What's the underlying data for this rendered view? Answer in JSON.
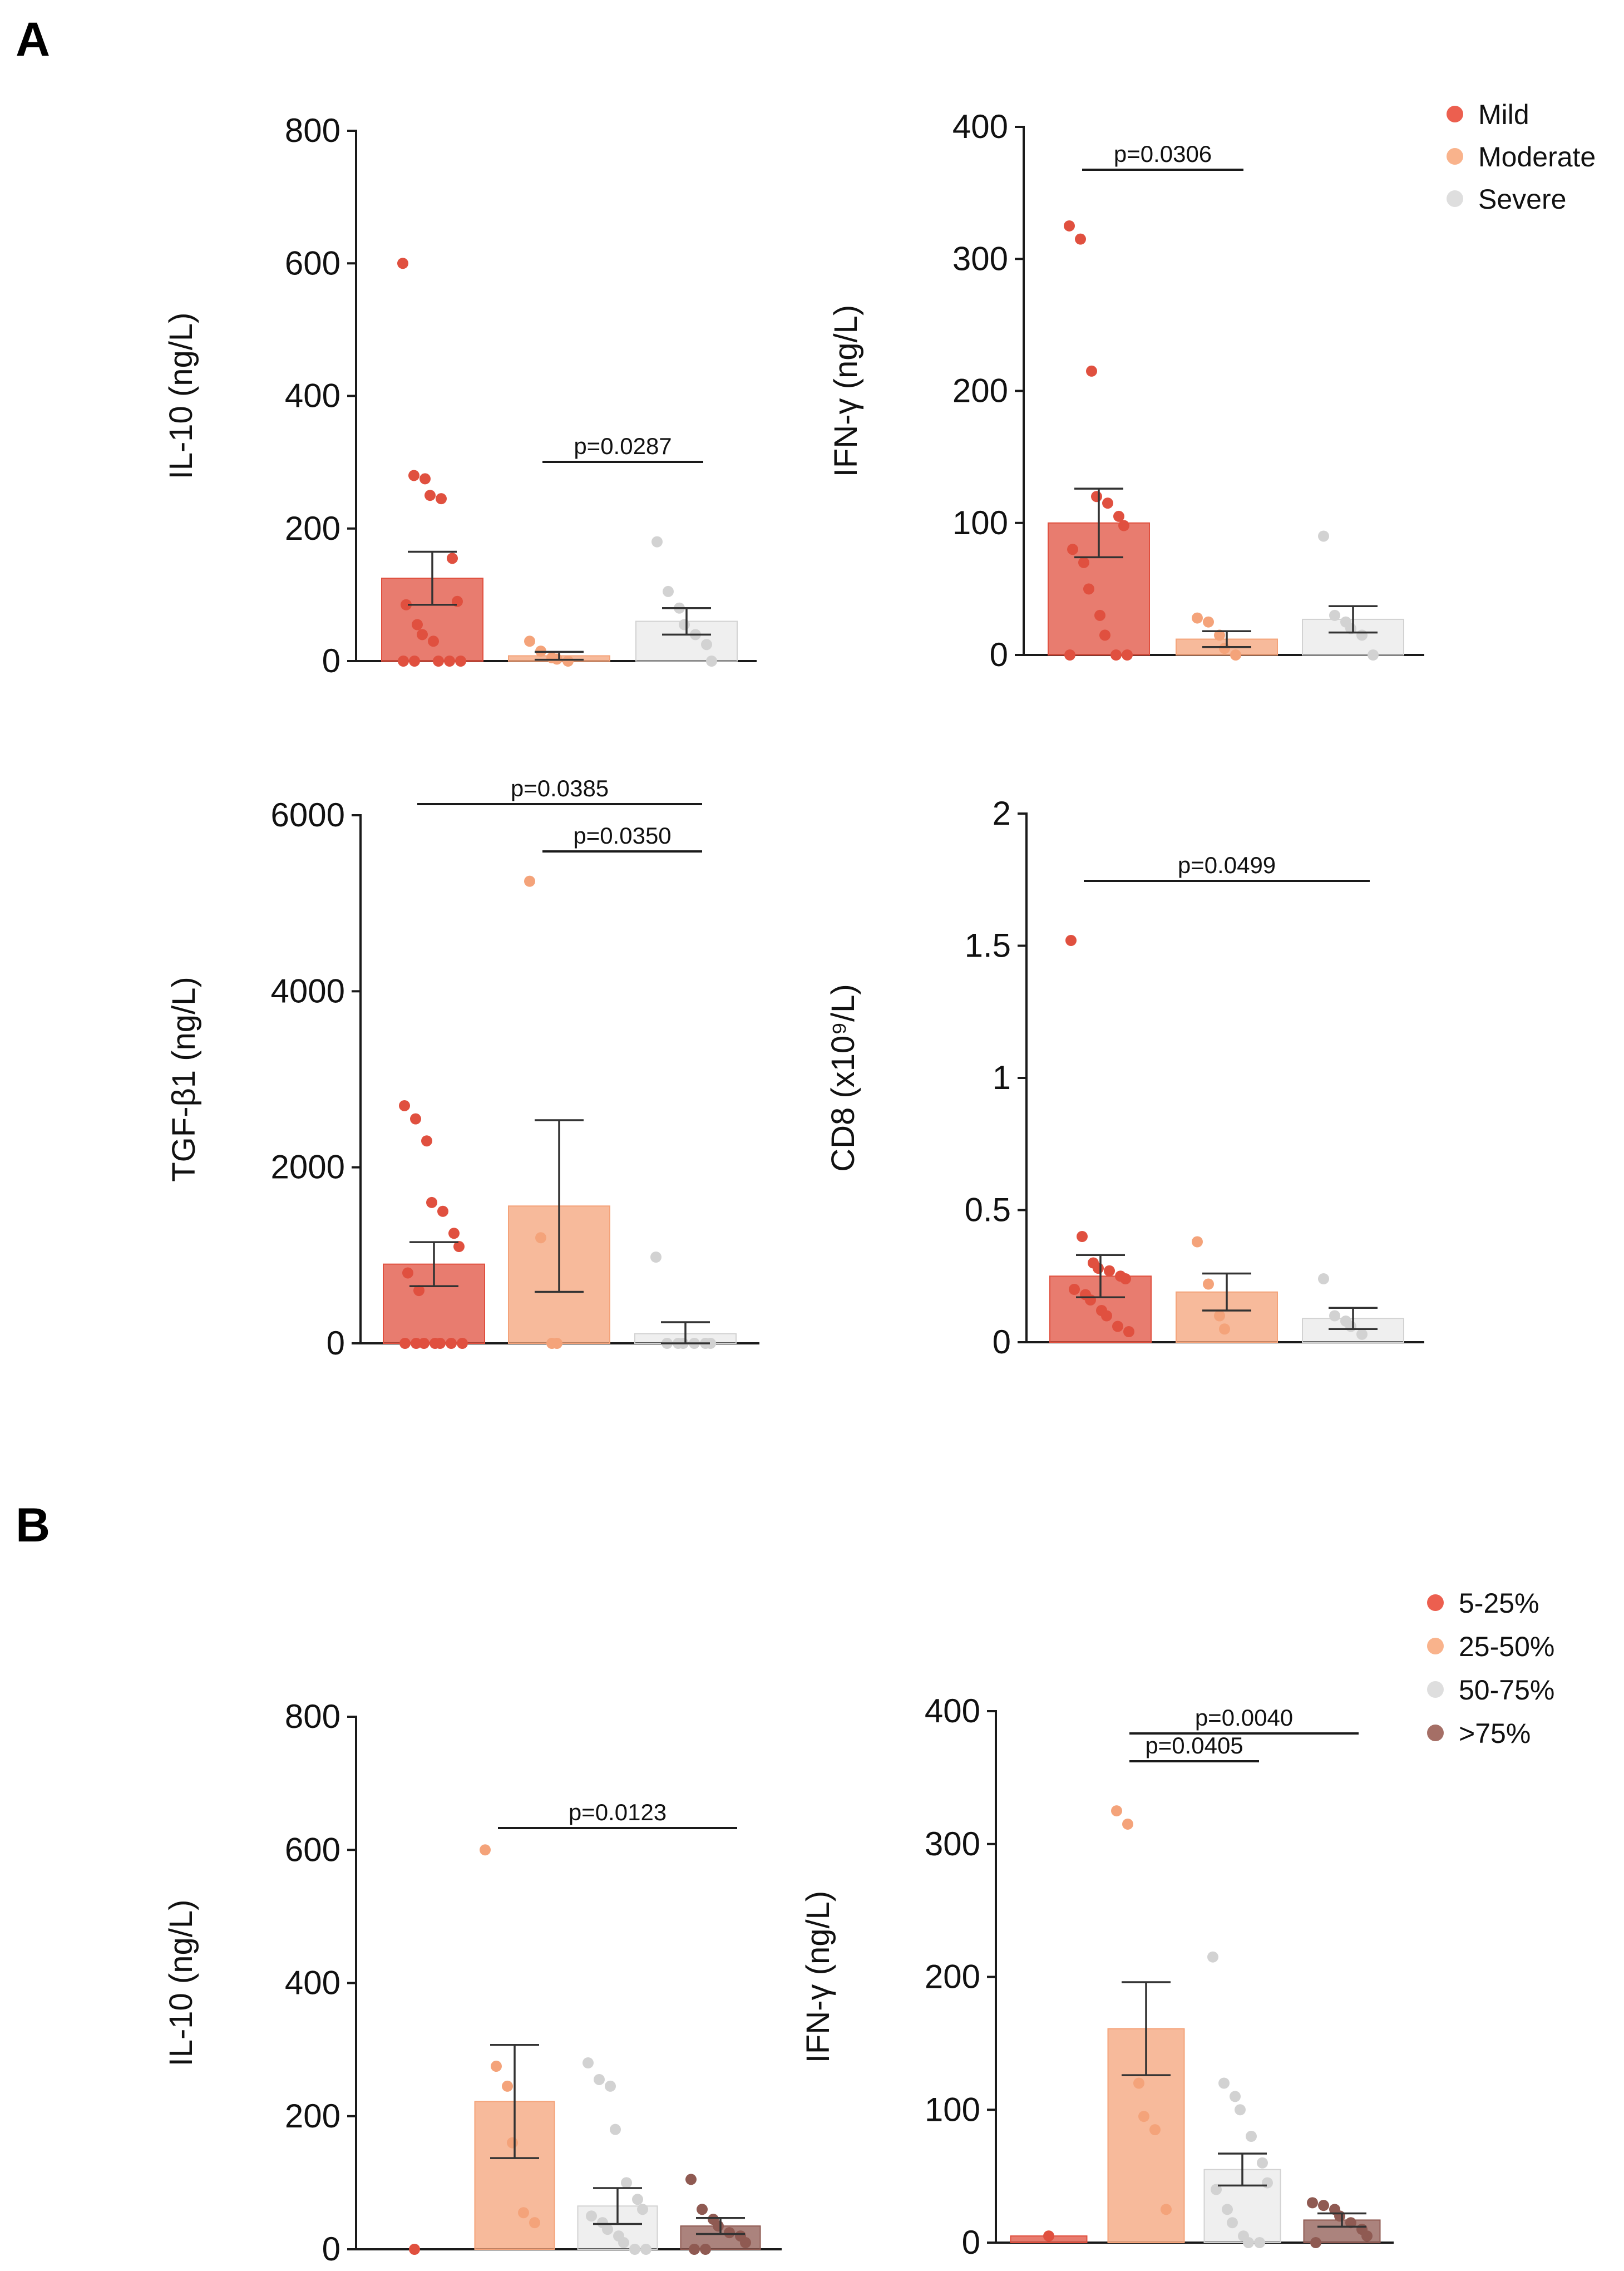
{
  "panels": [
    {
      "letter": "A"
    },
    {
      "letter": "B"
    }
  ],
  "legends": [
    {
      "categories": [
        "Mild",
        "Moderate",
        "Severe"
      ],
      "colors": [
        "#ec5f4f",
        "#f9b38c",
        "#dedede"
      ]
    },
    {
      "categories": [
        "5-25%",
        "25-50%",
        "50-75%",
        ">75%"
      ],
      "colors": [
        "#ec5f4f",
        "#f9b38c",
        "#dedede",
        "#a56f66"
      ]
    }
  ],
  "chart_data": [
    {
      "type": "bar",
      "panel": "A",
      "title": "",
      "xlabel": "",
      "ylabel": "IL-10 (ng/L)",
      "ylim": [
        0,
        800
      ],
      "yticks": [
        0,
        200,
        400,
        600,
        800
      ],
      "ytick_labels": [
        "0",
        "200",
        "400",
        "600",
        "800"
      ],
      "categories": [
        "Mild",
        "Moderate",
        "Severe"
      ],
      "values": [
        125,
        8,
        60
      ],
      "sem": [
        40,
        6,
        20
      ],
      "points": [
        [
          600,
          280,
          275,
          250,
          245,
          155,
          90,
          85,
          55,
          40,
          30,
          0,
          0,
          0,
          0,
          0
        ],
        [
          30,
          15,
          5,
          3,
          0
        ],
        [
          180,
          105,
          80,
          55,
          40,
          25,
          0
        ]
      ],
      "significance": [
        {
          "from": 1,
          "to": 2,
          "label": "p=0.0287"
        }
      ]
    },
    {
      "type": "bar",
      "panel": "A",
      "title": "",
      "xlabel": "",
      "ylabel": "IFN-γ (ng/L)",
      "ylim": [
        0,
        400
      ],
      "yticks": [
        0,
        100,
        200,
        300,
        400
      ],
      "ytick_labels": [
        "0",
        "100",
        "200",
        "300",
        "400"
      ],
      "categories": [
        "Mild",
        "Moderate",
        "Severe"
      ],
      "values": [
        100,
        12,
        27
      ],
      "sem": [
        26,
        6,
        10
      ],
      "points": [
        [
          325,
          315,
          215,
          120,
          115,
          105,
          98,
          80,
          70,
          50,
          30,
          15,
          0,
          0,
          0
        ],
        [
          28,
          25,
          15,
          5,
          0
        ],
        [
          90,
          30,
          25,
          20,
          15,
          0
        ]
      ],
      "significance": [
        {
          "from": 0,
          "to": 1,
          "label": "p=0.0306"
        }
      ]
    },
    {
      "type": "bar",
      "panel": "A",
      "title": "",
      "xlabel": "",
      "ylabel": "TGF-β1 (ng/L)",
      "ylim": [
        0,
        6000
      ],
      "yticks": [
        0,
        2000,
        4000,
        6000
      ],
      "ytick_labels": [
        "0",
        "2000",
        "4000",
        "6000"
      ],
      "categories": [
        "Mild",
        "Moderate",
        "Severe"
      ],
      "values": [
        900,
        1560,
        110
      ],
      "sem": [
        250,
        975,
        130
      ],
      "points": [
        [
          2700,
          2550,
          2300,
          1600,
          1500,
          1250,
          1100,
          800,
          600,
          0,
          0,
          0,
          0,
          0,
          0,
          0
        ],
        [
          5250,
          1200,
          0,
          0
        ],
        [
          980,
          0,
          0,
          0,
          0,
          0,
          0
        ]
      ],
      "significance": [
        {
          "from": 0,
          "to": 2,
          "label": "p=0.0385"
        },
        {
          "from": 1,
          "to": 2,
          "label": "p=0.0350"
        }
      ]
    },
    {
      "type": "bar",
      "panel": "A",
      "title": "",
      "xlabel": "",
      "ylabel": "CD8 (x10⁹/L)",
      "ylim": [
        0,
        2
      ],
      "yticks": [
        0,
        0.5,
        1,
        1.5,
        2
      ],
      "ytick_labels": [
        "0",
        "0.5",
        "1",
        "1.5",
        "2"
      ],
      "categories": [
        "Mild",
        "Moderate",
        "Severe"
      ],
      "values": [
        0.25,
        0.19,
        0.09
      ],
      "sem": [
        0.08,
        0.07,
        0.04
      ],
      "points": [
        [
          1.52,
          0.4,
          0.3,
          0.28,
          0.27,
          0.25,
          0.24,
          0.2,
          0.18,
          0.16,
          0.12,
          0.1,
          0.06,
          0.04
        ],
        [
          0.38,
          0.22,
          0.1,
          0.05
        ],
        [
          0.24,
          0.1,
          0.08,
          0.06,
          0.03
        ]
      ],
      "significance": [
        {
          "from": 0,
          "to": 2,
          "label": "p=0.0499"
        }
      ]
    },
    {
      "type": "bar",
      "panel": "B",
      "title": "",
      "xlabel": "",
      "ylabel": "IL-10 (ng/L)",
      "ylim": [
        0,
        800
      ],
      "yticks": [
        0,
        200,
        400,
        600,
        800
      ],
      "ytick_labels": [
        "0",
        "200",
        "400",
        "600",
        "800"
      ],
      "categories": [
        "5-25%",
        "25-50%",
        "50-75%",
        ">75%"
      ],
      "values": [
        0,
        222,
        65,
        35
      ],
      "sem": [
        0,
        85,
        27,
        12
      ],
      "points": [
        [
          0
        ],
        [
          600,
          275,
          245,
          160,
          55,
          40
        ],
        [
          280,
          255,
          245,
          180,
          100,
          75,
          60,
          50,
          40,
          30,
          20,
          10,
          0,
          0
        ],
        [
          105,
          60,
          45,
          35,
          25,
          20,
          10,
          0,
          0
        ]
      ],
      "significance": [
        {
          "from": 1,
          "to": 3,
          "label": "p=0.0123"
        }
      ]
    },
    {
      "type": "bar",
      "panel": "B",
      "title": "",
      "xlabel": "",
      "ylabel": "IFN-γ (ng/L)",
      "ylim": [
        0,
        400
      ],
      "yticks": [
        0,
        100,
        200,
        300,
        400
      ],
      "ytick_labels": [
        "0",
        "100",
        "200",
        "300",
        "400"
      ],
      "categories": [
        "5-25%",
        "25-50%",
        "50-75%",
        ">75%"
      ],
      "values": [
        5,
        161,
        55,
        17
      ],
      "sem": [
        0,
        35,
        12,
        5
      ],
      "points": [
        [
          5
        ],
        [
          325,
          315,
          120,
          95,
          85,
          25
        ],
        [
          215,
          120,
          110,
          100,
          80,
          60,
          45,
          40,
          25,
          15,
          5,
          0,
          0
        ],
        [
          30,
          28,
          25,
          20,
          15,
          10,
          5,
          0
        ]
      ],
      "significance": [
        {
          "from": 1,
          "to": 3,
          "label": "p=0.0040"
        },
        {
          "from": 1,
          "to": 2,
          "label": "p=0.0405"
        }
      ]
    }
  ]
}
